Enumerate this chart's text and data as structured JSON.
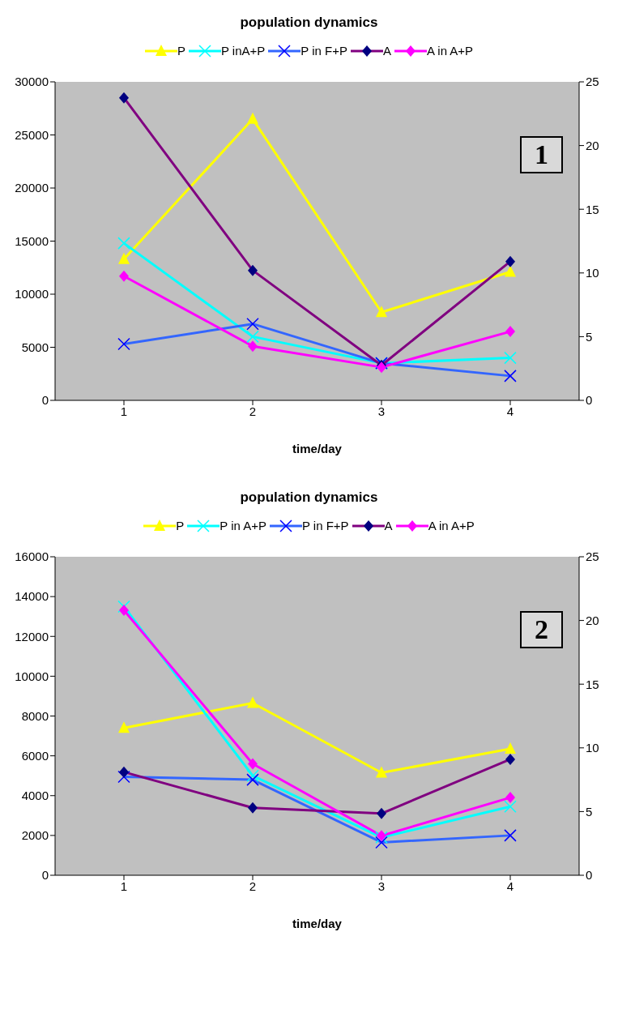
{
  "chart_data": [
    {
      "type": "line",
      "title": "population dynamics",
      "xlabel": "time/day",
      "categories": [
        "1",
        "2",
        "3",
        "4"
      ],
      "ylim": [
        0,
        30000
      ],
      "yticks": [
        0,
        5000,
        10000,
        15000,
        20000,
        25000,
        30000
      ],
      "y2lim": [
        0,
        25
      ],
      "y2ticks": [
        0,
        5,
        10,
        15,
        20,
        25
      ],
      "grid": false,
      "legend": "top",
      "annotations": [
        "1"
      ],
      "series": [
        {
          "name": "P",
          "color": "#ffff00",
          "marker": "triangle",
          "values": [
            13300,
            26500,
            8300,
            12100
          ]
        },
        {
          "name": "P inA+P",
          "color": "#00ffff",
          "marker": "cross",
          "values": [
            14800,
            6000,
            3500,
            4000
          ]
        },
        {
          "name": "P in F+P",
          "color": "#3366ff",
          "marker": "cross",
          "values": [
            5300,
            7200,
            3500,
            2300
          ]
        },
        {
          "name": "A",
          "color": "#800080",
          "marker": "diamond",
          "axis": "y2",
          "values": [
            23.75,
            10.2,
            2.75,
            10.9
          ]
        },
        {
          "name": "A in A+P",
          "color": "#ff00ff",
          "marker": "diamond",
          "axis": "y2",
          "values": [
            9.75,
            4.25,
            2.6,
            5.4
          ]
        }
      ]
    },
    {
      "type": "line",
      "title": "population dynamics",
      "xlabel": "time/day",
      "categories": [
        "1",
        "2",
        "3",
        "4"
      ],
      "ylim": [
        0,
        16000
      ],
      "yticks": [
        0,
        2000,
        4000,
        6000,
        8000,
        10000,
        12000,
        14000,
        16000
      ],
      "y2lim": [
        0,
        25
      ],
      "y2ticks": [
        0,
        5,
        10,
        15,
        20,
        25
      ],
      "grid": false,
      "legend": "top",
      "annotations": [
        "2"
      ],
      "series": [
        {
          "name": "P",
          "color": "#ffff00",
          "marker": "triangle",
          "values": [
            7400,
            8650,
            5150,
            6350
          ]
        },
        {
          "name": "P in A+P",
          "color": "#00ffff",
          "marker": "cross",
          "values": [
            13500,
            5000,
            1900,
            3450
          ]
        },
        {
          "name": "P in F+P",
          "color": "#3366ff",
          "marker": "cross",
          "values": [
            4950,
            4800,
            1650,
            2000
          ]
        },
        {
          "name": "A",
          "color": "#800080",
          "marker": "diamond",
          "axis": "y2",
          "values": [
            8.1,
            5.3,
            4.85,
            9.1
          ]
        },
        {
          "name": "A in A+P",
          "color": "#ff00ff",
          "marker": "diamond",
          "axis": "y2",
          "values": [
            20.8,
            8.75,
            3.1,
            6.1
          ]
        }
      ]
    }
  ]
}
